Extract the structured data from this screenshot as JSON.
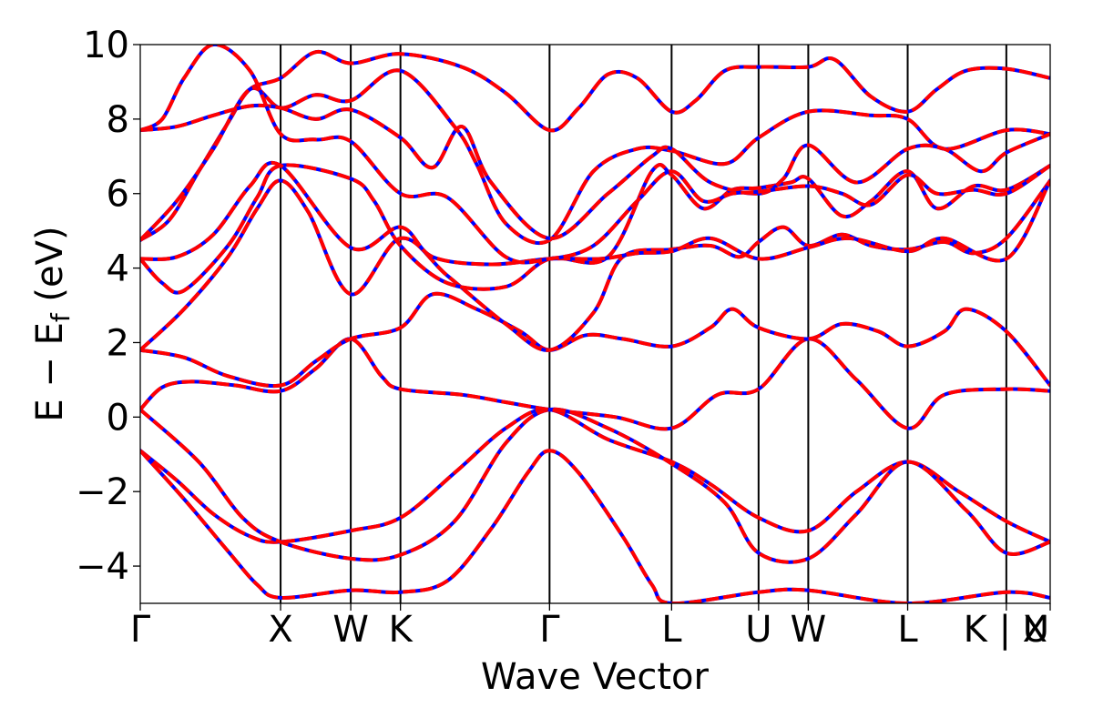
{
  "chart_data": {
    "type": "line",
    "title": "",
    "xlabel": "Wave Vector",
    "ylabel_main": "E − E",
    "ylabel_sub": "f",
    "ylabel_unit": " (eV)",
    "x_domain": [
      0,
      12.45
    ],
    "ylim": [
      -5,
      10
    ],
    "y_ticks": [
      10,
      8,
      6,
      4,
      2,
      0,
      -2,
      -4
    ],
    "y_tick_labels": [
      "10",
      "8",
      "6",
      "4",
      "2",
      "0",
      "−2",
      "−4"
    ],
    "kpoints": [
      {
        "x": 0.0,
        "label": "Γ"
      },
      {
        "x": 1.92,
        "label": "X"
      },
      {
        "x": 2.88,
        "label": "W"
      },
      {
        "x": 3.56,
        "label": "K"
      },
      {
        "x": 5.6,
        "label": "Γ"
      },
      {
        "x": 7.27,
        "label": "L"
      },
      {
        "x": 8.46,
        "label": "U"
      },
      {
        "x": 9.14,
        "label": "W"
      },
      {
        "x": 10.5,
        "label": "L"
      },
      {
        "x": 11.85,
        "label": "K | U"
      },
      {
        "x": 12.45,
        "label": "X"
      }
    ],
    "grid": false,
    "legend": "none",
    "colors": {
      "series_a": "#0000ff",
      "series_b": "#ff0000",
      "vlines": "#000000"
    },
    "series": [
      {
        "values": [
          [
            0,
            -0.9
          ],
          [
            0.5,
            -1.7
          ],
          [
            1.0,
            -2.6
          ],
          [
            1.5,
            -3.2
          ],
          [
            1.92,
            -3.35
          ],
          [
            2.88,
            -3.05
          ],
          [
            3.56,
            -2.7
          ],
          [
            4.3,
            -1.5
          ],
          [
            5.0,
            -0.3
          ],
          [
            5.6,
            0.2
          ],
          [
            6.4,
            -0.6
          ],
          [
            7.27,
            -1.2
          ],
          [
            7.8,
            -1.8
          ],
          [
            8.46,
            -2.7
          ],
          [
            9.14,
            -3.05
          ],
          [
            9.8,
            -2.0
          ],
          [
            10.5,
            -1.2
          ],
          [
            11.2,
            -2.0
          ],
          [
            11.85,
            -2.8
          ],
          [
            12.45,
            -3.35
          ]
        ]
      },
      {
        "values": [
          [
            0,
            -0.9
          ],
          [
            0.6,
            -2.2
          ],
          [
            1.2,
            -3.6
          ],
          [
            1.6,
            -4.5
          ],
          [
            1.92,
            -4.85
          ],
          [
            2.88,
            -4.65
          ],
          [
            3.56,
            -4.7
          ],
          [
            4.2,
            -4.4
          ],
          [
            4.8,
            -3.0
          ],
          [
            5.3,
            -1.5
          ],
          [
            5.6,
            -0.9
          ],
          [
            6.0,
            -1.5
          ],
          [
            6.6,
            -3.2
          ],
          [
            7.0,
            -4.5
          ],
          [
            7.27,
            -5.0
          ],
          [
            8.46,
            -4.7
          ],
          [
            9.14,
            -4.65
          ],
          [
            10.5,
            -5.0
          ],
          [
            11.85,
            -4.7
          ],
          [
            12.45,
            -4.85
          ]
        ]
      },
      {
        "values": [
          [
            0,
            0.2
          ],
          [
            0.8,
            -1.2
          ],
          [
            1.4,
            -2.7
          ],
          [
            1.92,
            -3.35
          ],
          [
            2.88,
            -3.8
          ],
          [
            3.56,
            -3.7
          ],
          [
            4.3,
            -2.8
          ],
          [
            5.0,
            -0.7
          ],
          [
            5.6,
            0.2
          ],
          [
            6.4,
            -0.3
          ],
          [
            7.27,
            -1.25
          ],
          [
            8.0,
            -2.3
          ],
          [
            8.46,
            -3.65
          ],
          [
            9.14,
            -3.8
          ],
          [
            9.8,
            -2.6
          ],
          [
            10.5,
            -1.2
          ],
          [
            11.3,
            -2.5
          ],
          [
            11.85,
            -3.65
          ],
          [
            12.45,
            -3.35
          ]
        ]
      },
      {
        "values": [
          [
            0,
            0.2
          ],
          [
            0.3,
            0.8
          ],
          [
            0.7,
            0.95
          ],
          [
            1.3,
            0.85
          ],
          [
            1.92,
            0.7
          ],
          [
            2.4,
            1.3
          ],
          [
            2.88,
            2.1
          ],
          [
            3.3,
            1.1
          ],
          [
            3.56,
            0.75
          ],
          [
            4.4,
            0.6
          ],
          [
            5.0,
            0.4
          ],
          [
            5.6,
            0.2
          ],
          [
            6.5,
            0.0
          ],
          [
            7.27,
            -0.3
          ],
          [
            7.9,
            0.6
          ],
          [
            8.46,
            0.75
          ],
          [
            9.14,
            2.1
          ],
          [
            9.8,
            1.0
          ],
          [
            10.5,
            -0.3
          ],
          [
            11.0,
            0.6
          ],
          [
            11.85,
            0.75
          ],
          [
            12.45,
            0.7
          ]
        ]
      },
      {
        "values": [
          [
            0,
            1.8
          ],
          [
            0.6,
            1.6
          ],
          [
            1.2,
            1.1
          ],
          [
            1.92,
            0.85
          ],
          [
            2.4,
            1.5
          ],
          [
            2.88,
            2.1
          ],
          [
            3.56,
            2.4
          ],
          [
            4.0,
            3.3
          ],
          [
            4.6,
            2.9
          ],
          [
            5.2,
            2.3
          ],
          [
            5.6,
            1.8
          ],
          [
            6.1,
            2.2
          ],
          [
            6.6,
            2.1
          ],
          [
            7.27,
            1.9
          ],
          [
            7.8,
            2.4
          ],
          [
            8.1,
            2.9
          ],
          [
            8.46,
            2.4
          ],
          [
            9.14,
            2.1
          ],
          [
            9.6,
            2.5
          ],
          [
            10.1,
            2.3
          ],
          [
            10.5,
            1.9
          ],
          [
            11.0,
            2.3
          ],
          [
            11.3,
            2.9
          ],
          [
            11.85,
            2.3
          ],
          [
            12.45,
            0.85
          ]
        ]
      },
      {
        "values": [
          [
            0,
            1.8
          ],
          [
            0.6,
            2.9
          ],
          [
            1.2,
            4.3
          ],
          [
            1.6,
            5.6
          ],
          [
            1.92,
            6.35
          ],
          [
            2.3,
            5.5
          ],
          [
            2.88,
            3.3
          ],
          [
            3.56,
            4.8
          ],
          [
            4.2,
            3.8
          ],
          [
            5.0,
            2.5
          ],
          [
            5.6,
            1.8
          ],
          [
            6.2,
            2.8
          ],
          [
            6.6,
            4.3
          ],
          [
            7.27,
            4.5
          ],
          [
            7.8,
            4.6
          ],
          [
            8.2,
            4.3
          ],
          [
            8.46,
            4.7
          ],
          [
            8.8,
            5.1
          ],
          [
            9.14,
            4.6
          ],
          [
            9.6,
            4.9
          ],
          [
            10.0,
            4.6
          ],
          [
            10.5,
            4.5
          ],
          [
            11.0,
            4.7
          ],
          [
            11.4,
            4.4
          ],
          [
            11.85,
            4.8
          ],
          [
            12.45,
            6.35
          ]
        ]
      },
      {
        "values": [
          [
            0,
            4.25
          ],
          [
            0.3,
            3.6
          ],
          [
            0.6,
            3.4
          ],
          [
            1.2,
            4.6
          ],
          [
            1.6,
            5.9
          ],
          [
            1.92,
            6.75
          ],
          [
            2.88,
            6.4
          ],
          [
            3.2,
            5.8
          ],
          [
            3.56,
            4.6
          ],
          [
            4.2,
            3.6
          ],
          [
            5.0,
            3.5
          ],
          [
            5.6,
            4.25
          ],
          [
            6.4,
            4.3
          ],
          [
            7.0,
            6.6
          ],
          [
            7.27,
            6.5
          ],
          [
            7.7,
            5.6
          ],
          [
            8.1,
            6.1
          ],
          [
            8.46,
            6.15
          ],
          [
            8.9,
            6.3
          ],
          [
            9.14,
            6.4
          ],
          [
            9.6,
            5.4
          ],
          [
            10.0,
            5.8
          ],
          [
            10.5,
            6.6
          ],
          [
            10.9,
            5.6
          ],
          [
            11.4,
            6.2
          ],
          [
            11.85,
            6.1
          ],
          [
            12.45,
            6.75
          ]
        ]
      },
      {
        "values": [
          [
            0,
            4.25
          ],
          [
            0.5,
            4.3
          ],
          [
            1.0,
            4.9
          ],
          [
            1.5,
            6.2
          ],
          [
            1.92,
            6.75
          ],
          [
            2.88,
            4.55
          ],
          [
            3.56,
            5.1
          ],
          [
            4.0,
            4.3
          ],
          [
            4.8,
            4.1
          ],
          [
            5.6,
            4.25
          ],
          [
            6.3,
            4.25
          ],
          [
            6.8,
            4.4
          ],
          [
            7.27,
            4.45
          ],
          [
            7.8,
            4.8
          ],
          [
            8.46,
            4.25
          ],
          [
            9.14,
            4.55
          ],
          [
            9.7,
            4.8
          ],
          [
            10.5,
            4.45
          ],
          [
            11.0,
            4.8
          ],
          [
            11.85,
            4.25
          ],
          [
            12.45,
            6.35
          ]
        ]
      },
      {
        "values": [
          [
            0,
            4.75
          ],
          [
            0.4,
            5.3
          ],
          [
            0.8,
            6.6
          ],
          [
            1.2,
            7.9
          ],
          [
            1.5,
            8.8
          ],
          [
            1.92,
            9.1
          ],
          [
            2.4,
            9.8
          ],
          [
            2.88,
            9.5
          ],
          [
            3.56,
            9.75
          ],
          [
            4.4,
            9.4
          ],
          [
            5.0,
            8.7
          ],
          [
            5.6,
            7.7
          ],
          [
            6.0,
            8.3
          ],
          [
            6.4,
            9.2
          ],
          [
            6.8,
            9.1
          ],
          [
            7.27,
            8.2
          ],
          [
            7.6,
            8.5
          ],
          [
            8.0,
            9.3
          ],
          [
            8.46,
            9.4
          ],
          [
            9.14,
            9.4
          ],
          [
            9.5,
            9.6
          ],
          [
            10.0,
            8.6
          ],
          [
            10.5,
            8.2
          ],
          [
            10.9,
            8.8
          ],
          [
            11.3,
            9.3
          ],
          [
            11.85,
            9.35
          ],
          [
            12.45,
            9.1
          ]
        ]
      },
      {
        "values": [
          [
            0,
            4.75
          ],
          [
            0.5,
            5.8
          ],
          [
            1.0,
            7.2
          ],
          [
            1.5,
            8.8
          ],
          [
            1.92,
            8.3
          ],
          [
            2.4,
            8.65
          ],
          [
            2.88,
            8.5
          ],
          [
            3.56,
            9.3
          ],
          [
            4.3,
            7.8
          ],
          [
            4.6,
            6.8
          ],
          [
            5.0,
            5.2
          ],
          [
            5.6,
            4.75
          ],
          [
            6.2,
            6.6
          ],
          [
            6.8,
            7.2
          ],
          [
            7.27,
            7.15
          ],
          [
            8.0,
            6.8
          ],
          [
            8.46,
            7.5
          ],
          [
            9.14,
            8.2
          ],
          [
            10.0,
            8.1
          ],
          [
            10.5,
            8.0
          ],
          [
            11.0,
            7.2
          ],
          [
            11.85,
            7.7
          ],
          [
            12.45,
            7.6
          ]
        ]
      },
      {
        "values": [
          [
            0,
            7.7
          ],
          [
            0.5,
            7.8
          ],
          [
            1.0,
            8.1
          ],
          [
            1.5,
            8.35
          ],
          [
            1.92,
            8.3
          ],
          [
            2.4,
            8.0
          ],
          [
            2.88,
            8.25
          ],
          [
            3.56,
            7.5
          ],
          [
            4.0,
            6.7
          ],
          [
            4.4,
            7.8
          ],
          [
            4.8,
            6.3
          ],
          [
            5.6,
            4.8
          ],
          [
            6.4,
            6.0
          ],
          [
            7.0,
            7.0
          ],
          [
            7.27,
            7.2
          ],
          [
            7.8,
            6.3
          ],
          [
            8.46,
            6.0
          ],
          [
            8.8,
            6.4
          ],
          [
            9.14,
            7.3
          ],
          [
            9.8,
            6.3
          ],
          [
            10.5,
            7.2
          ],
          [
            11.0,
            7.2
          ],
          [
            11.5,
            6.6
          ],
          [
            11.85,
            7.1
          ],
          [
            12.45,
            7.6
          ]
        ]
      },
      {
        "values": [
          [
            0,
            7.7
          ],
          [
            0.3,
            8.0
          ],
          [
            0.6,
            9.1
          ],
          [
            1.0,
            10.0
          ],
          [
            1.5,
            9.3
          ],
          [
            1.92,
            7.6
          ],
          [
            2.4,
            7.45
          ],
          [
            2.88,
            7.4
          ],
          [
            3.56,
            6.0
          ],
          [
            4.2,
            5.9
          ],
          [
            5.0,
            4.3
          ],
          [
            5.6,
            4.25
          ],
          [
            6.2,
            4.6
          ],
          [
            6.8,
            5.8
          ],
          [
            7.27,
            6.6
          ],
          [
            7.7,
            5.8
          ],
          [
            8.1,
            6.0
          ],
          [
            8.46,
            6.05
          ],
          [
            9.14,
            6.2
          ],
          [
            9.6,
            6.0
          ],
          [
            10.0,
            5.7
          ],
          [
            10.5,
            6.5
          ],
          [
            10.9,
            6.0
          ],
          [
            11.4,
            6.1
          ],
          [
            11.85,
            6.0
          ],
          [
            12.45,
            6.75
          ]
        ]
      }
    ]
  }
}
